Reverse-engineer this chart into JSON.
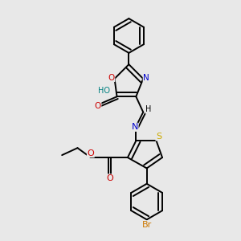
{
  "bg_color": "#e8e8e8",
  "bond_color": "#000000",
  "atom_colors": {
    "N": "#0000cc",
    "O": "#cc0000",
    "S": "#ccaa00",
    "Br": "#cc7700",
    "HO": "#008080",
    "C": "#000000"
  },
  "title": ""
}
